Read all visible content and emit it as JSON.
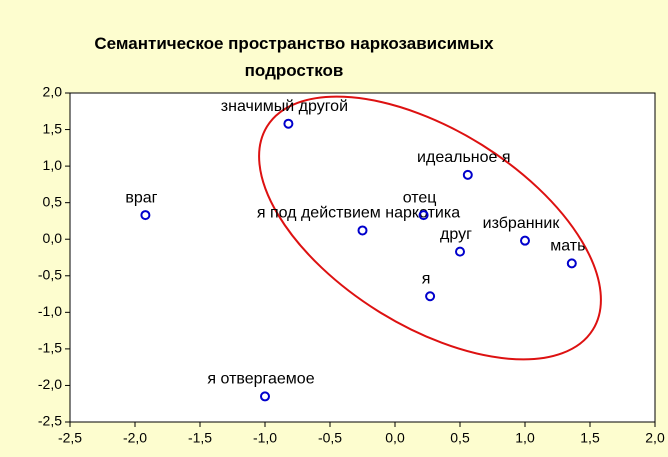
{
  "chart_data": {
    "type": "scatter",
    "title": "Семантическое пространство наркозависимых подростков",
    "labels": [
      "враг",
      "значимый другой",
      "я под действием наркотика",
      "отец",
      "идеальное я",
      "друг",
      "избранник",
      "мать",
      "я",
      "я отвергаемое"
    ],
    "x": [
      -1.92,
      -0.82,
      -0.25,
      0.22,
      0.56,
      0.5,
      1.0,
      1.36,
      0.27,
      -1.0
    ],
    "values": [
      0.33,
      1.58,
      0.12,
      0.33,
      0.88,
      -0.17,
      -0.02,
      -0.33,
      -0.78,
      -2.15
    ],
    "color": "#0000cc",
    "xlim": [
      -2.5,
      2.0
    ],
    "ylim": [
      -2.5,
      2.0
    ],
    "xticks": [
      {
        "value": -2.5,
        "label": "-2,5"
      },
      {
        "value": -2.0,
        "label": "-2,0"
      },
      {
        "value": -1.5,
        "label": "-1,5"
      },
      {
        "value": -1.0,
        "label": "-1,0"
      },
      {
        "value": -0.5,
        "label": "-0,5"
      },
      {
        "value": 0,
        "label": "0,0"
      },
      {
        "value": 0.5,
        "label": "0,5"
      },
      {
        "value": 1.0,
        "label": "1,0"
      },
      {
        "value": 1.5,
        "label": "1,5"
      },
      {
        "value": 2.0,
        "label": "2,0"
      }
    ],
    "yticks": [
      {
        "value": 2.0,
        "label": "2,0"
      },
      {
        "value": 1.5,
        "label": "1,5"
      },
      {
        "value": 1.0,
        "label": "1,0"
      },
      {
        "value": 0.5,
        "label": "0,5"
      },
      {
        "value": 0,
        "label": "0,0"
      },
      {
        "value": -0.5,
        "label": "-0,5"
      },
      {
        "value": -1.0,
        "label": "-1,0"
      },
      {
        "value": -1.5,
        "label": "-1,5"
      },
      {
        "value": -2.0,
        "label": "-2,0"
      },
      {
        "value": -2.5,
        "label": "-2,5"
      }
    ],
    "grid": false
  }
}
